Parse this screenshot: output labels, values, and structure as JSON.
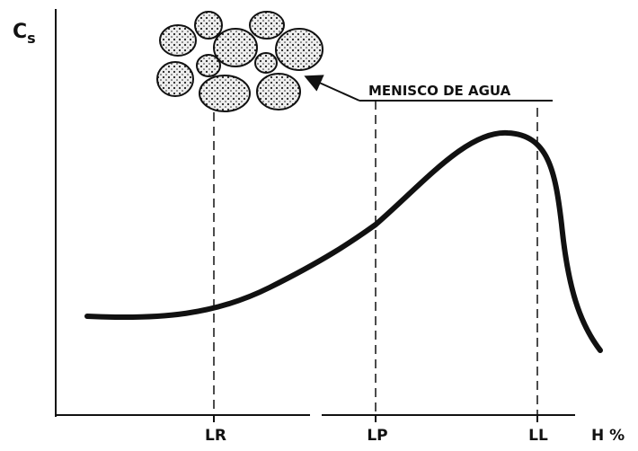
{
  "axes": {
    "y_label": {
      "main": "C",
      "sub": "s"
    },
    "x_label": "H %"
  },
  "limits": [
    "LR",
    "LP",
    "LL"
  ],
  "annotation": "MENISCO DE AGUA"
}
